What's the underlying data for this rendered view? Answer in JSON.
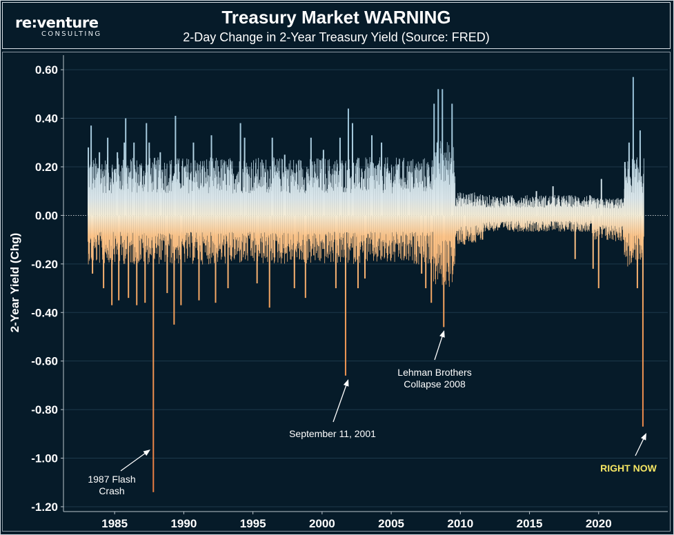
{
  "logo": {
    "main": "re:venture",
    "sub": "CONSULTING"
  },
  "chart_data": {
    "type": "bar",
    "title": "Treasury Market WARNING",
    "subtitle": "2-Day Change in 2-Year Treasury Yield (Source: FRED)",
    "xlabel": "",
    "ylabel": "2-Year Yield (Chg)",
    "xlim": [
      1981.3,
      2025.0
    ],
    "ylim": [
      -1.22,
      0.66
    ],
    "x_ticks": [
      "1985",
      "1990",
      "1995",
      "2000",
      "2005",
      "2010",
      "2015",
      "2020"
    ],
    "y_ticks": [
      "0.60",
      "0.40",
      "0.20",
      "0.00",
      "-0.20",
      "-0.40",
      "-0.60",
      "-0.80",
      "-1.00",
      "-1.20"
    ],
    "grid": "horizontal",
    "colors": {
      "positive": "#9fc6dd",
      "negative": "#f4a25a",
      "neutral": "#f3ead8",
      "annotation": "#ffffff",
      "highlight": "#f5e663",
      "background": "#061b29"
    },
    "series": [
      {
        "values": [
          {
            "x": 1983.1,
            "y": 0.28
          },
          {
            "x": 1983.3,
            "y": 0.37
          },
          {
            "x": 1983.4,
            "y": -0.24
          },
          {
            "x": 1983.9,
            "y": 0.26
          },
          {
            "x": 1984.2,
            "y": -0.3
          },
          {
            "x": 1984.5,
            "y": 0.32
          },
          {
            "x": 1984.8,
            "y": -0.37
          },
          {
            "x": 1985.2,
            "y": 0.26
          },
          {
            "x": 1985.3,
            "y": -0.35
          },
          {
            "x": 1985.7,
            "y": 0.3
          },
          {
            "x": 1985.8,
            "y": 0.4
          },
          {
            "x": 1986.0,
            "y": -0.34
          },
          {
            "x": 1986.4,
            "y": 0.3
          },
          {
            "x": 1986.6,
            "y": -0.37
          },
          {
            "x": 1987.2,
            "y": -0.36
          },
          {
            "x": 1987.3,
            "y": 0.38
          },
          {
            "x": 1987.5,
            "y": 0.3
          },
          {
            "x": 1987.8,
            "y": -1.14
          },
          {
            "x": 1988.3,
            "y": 0.26
          },
          {
            "x": 1988.8,
            "y": -0.32
          },
          {
            "x": 1989.3,
            "y": -0.45
          },
          {
            "x": 1989.4,
            "y": 0.41
          },
          {
            "x": 1989.8,
            "y": -0.37
          },
          {
            "x": 1990.7,
            "y": 0.3
          },
          {
            "x": 1991.1,
            "y": -0.35
          },
          {
            "x": 1992.0,
            "y": 0.33
          },
          {
            "x": 1992.3,
            "y": -0.36
          },
          {
            "x": 1993.2,
            "y": -0.3
          },
          {
            "x": 1994.1,
            "y": 0.38
          },
          {
            "x": 1994.4,
            "y": 0.32
          },
          {
            "x": 1995.3,
            "y": -0.28
          },
          {
            "x": 1996.2,
            "y": -0.38
          },
          {
            "x": 1996.4,
            "y": 0.32
          },
          {
            "x": 1997.3,
            "y": 0.25
          },
          {
            "x": 1998.0,
            "y": -0.3
          },
          {
            "x": 1998.8,
            "y": -0.34
          },
          {
            "x": 1999.2,
            "y": 0.32
          },
          {
            "x": 2000.1,
            "y": 0.27
          },
          {
            "x": 2001.0,
            "y": -0.3
          },
          {
            "x": 2001.3,
            "y": 0.32
          },
          {
            "x": 2001.7,
            "y": -0.66
          },
          {
            "x": 2001.9,
            "y": 0.44
          },
          {
            "x": 2002.2,
            "y": 0.38
          },
          {
            "x": 2002.6,
            "y": -0.3
          },
          {
            "x": 2003.1,
            "y": -0.26
          },
          {
            "x": 2003.6,
            "y": 0.33
          },
          {
            "x": 2004.3,
            "y": 0.3
          },
          {
            "x": 2005.5,
            "y": 0.21
          },
          {
            "x": 2006.3,
            "y": 0.18
          },
          {
            "x": 2007.2,
            "y": -0.24
          },
          {
            "x": 2007.5,
            "y": -0.3
          },
          {
            "x": 2007.9,
            "y": -0.36
          },
          {
            "x": 2008.1,
            "y": 0.46
          },
          {
            "x": 2008.4,
            "y": 0.52
          },
          {
            "x": 2008.7,
            "y": 0.52
          },
          {
            "x": 2008.8,
            "y": -0.46
          },
          {
            "x": 2009.4,
            "y": 0.46
          },
          {
            "x": 2010.3,
            "y": -0.12
          },
          {
            "x": 2011.6,
            "y": -0.1
          },
          {
            "x": 2013.5,
            "y": 0.08
          },
          {
            "x": 2015.5,
            "y": 0.1
          },
          {
            "x": 2016.7,
            "y": 0.12
          },
          {
            "x": 2018.3,
            "y": -0.18
          },
          {
            "x": 2019.6,
            "y": -0.22
          },
          {
            "x": 2020.0,
            "y": -0.3
          },
          {
            "x": 2020.2,
            "y": 0.15
          },
          {
            "x": 2021.9,
            "y": 0.22
          },
          {
            "x": 2022.2,
            "y": 0.3
          },
          {
            "x": 2022.5,
            "y": 0.57
          },
          {
            "x": 2022.8,
            "y": -0.3
          },
          {
            "x": 2023.0,
            "y": 0.35
          },
          {
            "x": 2023.2,
            "y": -0.87
          }
        ]
      }
    ],
    "annotations": [
      {
        "text": "1987 Flash\nCrash",
        "x": 1987.8,
        "y": -1.14
      },
      {
        "text": "September 11, 2001",
        "x": 2001.7,
        "y": -0.66
      },
      {
        "text": "Lehman Brothers\nCollapse 2008",
        "x": 2008.8,
        "y": -0.46
      },
      {
        "text": "RIGHT NOW",
        "x": 2023.2,
        "y": -0.87
      }
    ]
  }
}
